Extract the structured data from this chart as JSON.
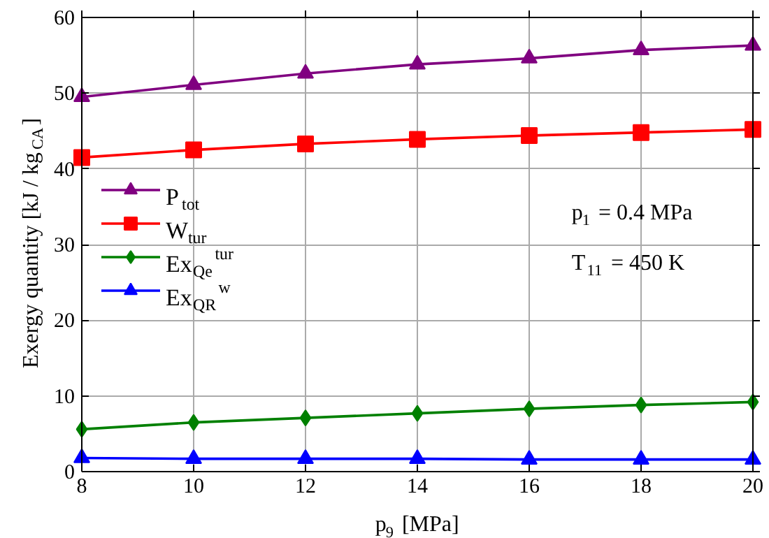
{
  "chart_data": {
    "type": "line",
    "xlabel": "p$_{9}$ [MPa]",
    "ylabel": "Exergy quantity [kJ / kg$_{CA}$]",
    "x": [
      8,
      10,
      12,
      14,
      16,
      18,
      20
    ],
    "series": [
      {
        "name": "P$_{tot}$",
        "color": "#800080",
        "marker": "triangle",
        "values": [
          49.5,
          51.1,
          52.6,
          53.8,
          54.6,
          55.7,
          56.3
        ]
      },
      {
        "name": "W$_{tur}$",
        "color": "#ff0000",
        "marker": "square",
        "values": [
          41.5,
          42.5,
          43.3,
          43.9,
          44.4,
          44.8,
          45.2
        ]
      },
      {
        "name": "Ex$_{Qe}$$^{tur}$",
        "color": "#008000",
        "marker": "diamond",
        "values": [
          5.6,
          6.5,
          7.1,
          7.7,
          8.3,
          8.8,
          9.2
        ]
      },
      {
        "name": "Ex$_{QR}$$^{w}$",
        "color": "#0000ff",
        "marker": "triangle",
        "values": [
          1.8,
          1.7,
          1.7,
          1.7,
          1.6,
          1.6,
          1.6
        ]
      }
    ],
    "annotations": [
      "p$_{1}$ = 0.4 MPa",
      "T$_{11}$ = 450 K"
    ],
    "xlim": [
      8,
      20
    ],
    "xticks": [
      8,
      10,
      12,
      14,
      16,
      18,
      20
    ],
    "ylim": [
      0,
      60
    ],
    "yticks": [
      0,
      10,
      20,
      30,
      40,
      50,
      60
    ],
    "grid": true,
    "legend": "left",
    "line_style": "solid"
  }
}
